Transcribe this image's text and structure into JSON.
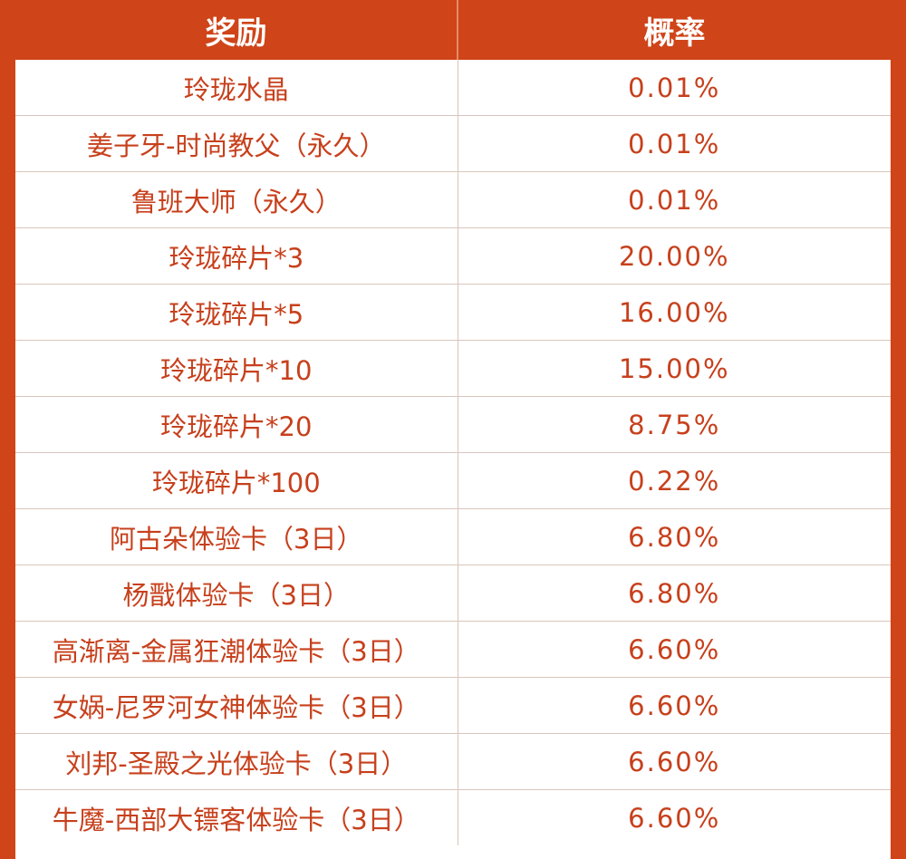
{
  "header": {
    "reward": "奖励",
    "probability": "概率"
  },
  "rows": [
    {
      "reward": "玲珑水晶",
      "probability": "0.01%"
    },
    {
      "reward": "姜子牙-时尚教父（永久）",
      "probability": "0.01%"
    },
    {
      "reward": "鲁班大师（永久）",
      "probability": "0.01%"
    },
    {
      "reward": "玲珑碎片*3",
      "probability": "20.00%"
    },
    {
      "reward": "玲珑碎片*5",
      "probability": "16.00%"
    },
    {
      "reward": "玲珑碎片*10",
      "probability": "15.00%"
    },
    {
      "reward": "玲珑碎片*20",
      "probability": "8.75%"
    },
    {
      "reward": "玲珑碎片*100",
      "probability": "0.22%"
    },
    {
      "reward": "阿古朵体验卡（3日）",
      "probability": "6.80%"
    },
    {
      "reward": "杨戬体验卡（3日）",
      "probability": "6.80%"
    },
    {
      "reward": "高渐离-金属狂潮体验卡（3日）",
      "probability": "6.60%"
    },
    {
      "reward": "女娲-尼罗河女神体验卡（3日）",
      "probability": "6.60%"
    },
    {
      "reward": "刘邦-圣殿之光体验卡（3日）",
      "probability": "6.60%"
    },
    {
      "reward": "牛魔-西部大镖客体验卡（3日）",
      "probability": "6.60%"
    }
  ],
  "colors": {
    "accent": "#cf4418",
    "text": "#c7401c",
    "grid": "#d9c6bc"
  }
}
